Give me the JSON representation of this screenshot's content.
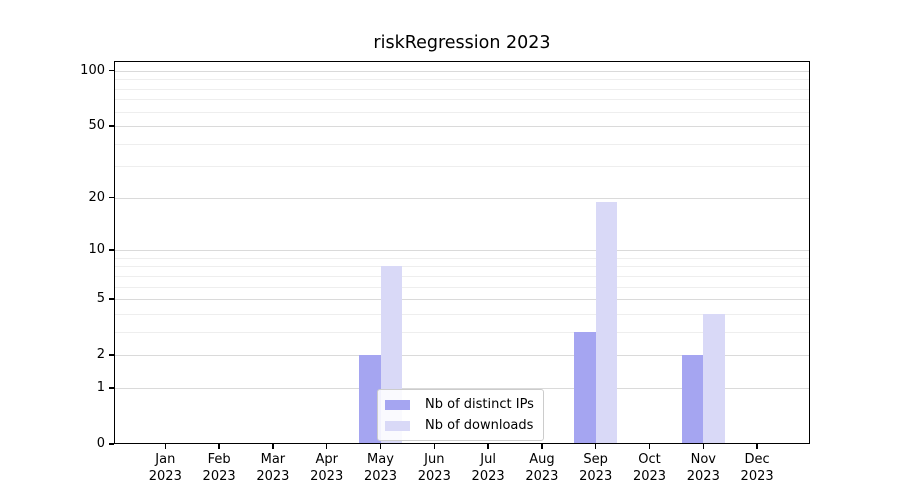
{
  "chart_data": {
    "type": "bar",
    "title": "riskRegression 2023",
    "categories": [
      "Jan",
      "Feb",
      "Mar",
      "Apr",
      "May",
      "Jun",
      "Jul",
      "Aug",
      "Sep",
      "Oct",
      "Nov",
      "Dec"
    ],
    "x_year_label": "2023",
    "series": [
      {
        "name": "Nb of distinct IPs",
        "color": "#a5a5f1",
        "values": [
          0,
          0,
          0,
          0,
          2,
          0,
          0,
          0,
          3,
          0,
          2,
          0
        ]
      },
      {
        "name": "Nb of downloads",
        "color": "#d9d9f7",
        "values": [
          0,
          0,
          0,
          0,
          8,
          0,
          0,
          0,
          19,
          0,
          4,
          0
        ]
      }
    ],
    "yscale": "log1p",
    "ylim": [
      0,
      113
    ],
    "yticks_major": [
      0,
      1,
      2,
      5,
      10,
      20,
      50,
      100
    ],
    "yticks_minor": [
      3,
      4,
      6,
      7,
      8,
      9,
      30,
      40,
      60,
      70,
      80,
      90
    ],
    "grid": true,
    "legend": {
      "position": "inside-bottom-center"
    },
    "colors": {
      "grid_major": "#dadada",
      "grid_minor": "#eeeeee",
      "spine": "#000000",
      "text": "#000000",
      "background": "#ffffff"
    }
  }
}
